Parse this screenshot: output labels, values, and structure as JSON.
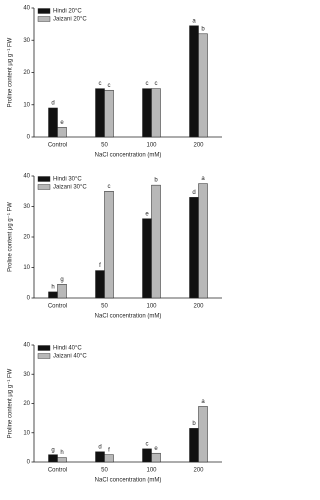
{
  "chart_data": [
    {
      "type": "bar",
      "y_label": "Proline content μg g⁻¹ FW",
      "x_label": "NaCl concentration (mM)",
      "categories": [
        "Control",
        "50",
        "100",
        "200"
      ],
      "series": [
        {
          "name": "Hindi 20°C",
          "color": "#111111",
          "values": [
            9,
            15,
            15,
            34.5
          ],
          "letters": [
            "d",
            "c",
            "c",
            "a"
          ]
        },
        {
          "name": "Jaizani 20°C",
          "color": "#b8b8b8",
          "values": [
            3,
            14.5,
            15,
            32
          ],
          "letters": [
            "e",
            "c",
            "c",
            "b"
          ]
        }
      ],
      "ylim": [
        0,
        40
      ],
      "yticks": [
        0,
        10,
        20,
        30,
        40
      ],
      "legend": "upper-left"
    },
    {
      "type": "bar",
      "y_label": "Proline content μg g⁻¹ FW",
      "x_label": "NaCl concentration (mM)",
      "categories": [
        "Control",
        "50",
        "100",
        "200"
      ],
      "series": [
        {
          "name": "Hindi 30°C",
          "color": "#111111",
          "values": [
            2,
            9,
            26,
            33
          ],
          "letters": [
            "h",
            "f",
            "e",
            "d"
          ]
        },
        {
          "name": "Jaizani 30°C",
          "color": "#b8b8b8",
          "values": [
            4.5,
            35,
            37,
            37.5
          ],
          "letters": [
            "g",
            "c",
            "b",
            "a"
          ]
        }
      ],
      "ylim": [
        0,
        40
      ],
      "yticks": [
        0,
        10,
        20,
        30,
        40
      ],
      "legend": "upper-left"
    },
    {
      "type": "bar",
      "y_label": "Proline content μg g⁻¹ FW",
      "x_label": "NaCl concentration (mM)",
      "categories": [
        "Control",
        "50",
        "100",
        "200"
      ],
      "series": [
        {
          "name": "Hindi 40°C",
          "color": "#111111",
          "values": [
            2.5,
            3.5,
            4.5,
            11.5
          ],
          "letters": [
            "g",
            "d",
            "c",
            "b"
          ]
        },
        {
          "name": "Jaizani 40°C",
          "color": "#b8b8b8",
          "values": [
            1.5,
            2.5,
            3,
            19
          ],
          "letters": [
            "h",
            "f",
            "e",
            "a"
          ]
        }
      ],
      "ylim": [
        0,
        40
      ],
      "yticks": [
        0,
        10,
        20,
        30,
        40
      ],
      "legend": "upper-left"
    }
  ]
}
